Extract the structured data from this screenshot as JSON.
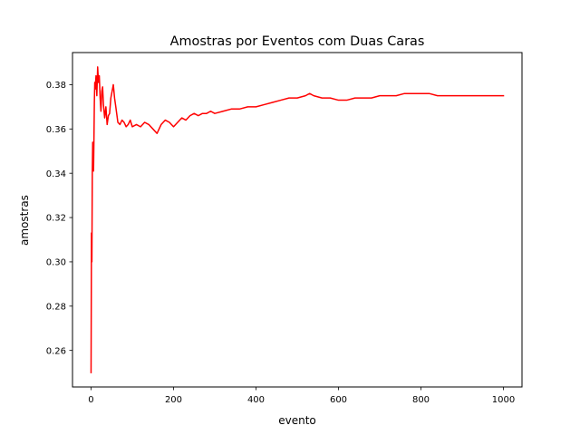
{
  "chart_data": {
    "type": "line",
    "title": "Amostras por Eventos com Duas Caras",
    "xlabel": "evento",
    "ylabel": "amostras",
    "xlim": [
      -45,
      1045
    ],
    "ylim": [
      0.2435,
      0.3945
    ],
    "xticks": [
      0,
      200,
      400,
      600,
      800,
      1000
    ],
    "xtick_labels": [
      "0",
      "200",
      "400",
      "600",
      "800",
      "1000"
    ],
    "yticks": [
      0.26,
      0.28,
      0.3,
      0.32,
      0.34,
      0.36,
      0.38
    ],
    "ytick_labels": [
      "0.26",
      "0.28",
      "0.30",
      "0.32",
      "0.34",
      "0.36",
      "0.38"
    ],
    "grid": false,
    "series": [
      {
        "color": "#ff0000",
        "x": [
          0,
          1,
          2,
          3,
          4,
          5,
          6,
          7,
          8,
          9,
          10,
          12,
          14,
          16,
          18,
          20,
          22,
          24,
          26,
          28,
          30,
          33,
          36,
          39,
          42,
          45,
          48,
          51,
          54,
          57,
          60,
          65,
          70,
          75,
          80,
          85,
          90,
          95,
          100,
          110,
          120,
          130,
          140,
          150,
          160,
          170,
          180,
          190,
          200,
          210,
          220,
          230,
          240,
          250,
          260,
          270,
          280,
          290,
          300,
          320,
          340,
          360,
          380,
          400,
          420,
          440,
          460,
          480,
          500,
          520,
          530,
          540,
          560,
          580,
          600,
          620,
          640,
          660,
          680,
          700,
          720,
          740,
          760,
          780,
          800,
          820,
          840,
          860,
          880,
          900,
          920,
          940,
          960,
          980,
          1000
        ],
        "values": [
          0.25,
          0.313,
          0.3,
          0.34,
          0.354,
          0.345,
          0.341,
          0.355,
          0.372,
          0.381,
          0.378,
          0.384,
          0.375,
          0.388,
          0.381,
          0.384,
          0.374,
          0.368,
          0.377,
          0.379,
          0.371,
          0.365,
          0.37,
          0.362,
          0.366,
          0.367,
          0.374,
          0.377,
          0.38,
          0.374,
          0.37,
          0.363,
          0.362,
          0.364,
          0.363,
          0.361,
          0.362,
          0.364,
          0.361,
          0.362,
          0.361,
          0.363,
          0.362,
          0.36,
          0.358,
          0.362,
          0.364,
          0.363,
          0.361,
          0.363,
          0.365,
          0.364,
          0.366,
          0.367,
          0.366,
          0.367,
          0.367,
          0.368,
          0.367,
          0.368,
          0.369,
          0.369,
          0.37,
          0.37,
          0.371,
          0.372,
          0.373,
          0.374,
          0.374,
          0.375,
          0.376,
          0.375,
          0.374,
          0.374,
          0.373,
          0.373,
          0.374,
          0.374,
          0.374,
          0.375,
          0.375,
          0.375,
          0.376,
          0.376,
          0.376,
          0.376,
          0.375,
          0.375,
          0.375,
          0.375,
          0.375,
          0.375,
          0.375,
          0.375,
          0.375
        ]
      }
    ]
  }
}
